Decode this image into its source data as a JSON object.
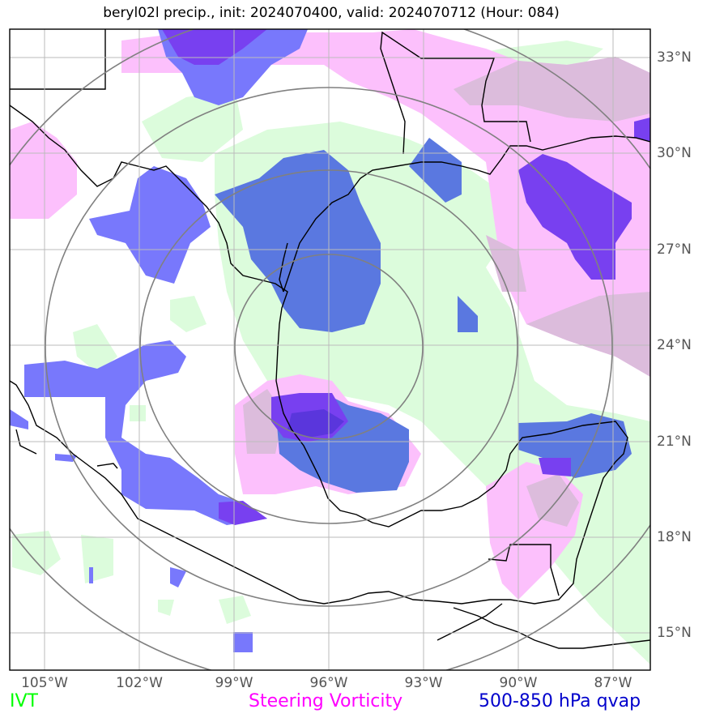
{
  "title": "beryl02l precip., init: 2024070400, valid: 2024070712 (Hour: 084)",
  "lat_labels": [
    "33°N",
    "30°N",
    "27°N",
    "24°N",
    "21°N",
    "18°N",
    "15°N"
  ],
  "lon_labels": [
    "105°W",
    "102°W",
    "99°W",
    "96°W",
    "93°W",
    "90°W",
    "87°W"
  ],
  "legend": {
    "ivt": {
      "label": "IVT",
      "color": "#00ff00"
    },
    "vorticity": {
      "label": "Steering Vorticity",
      "color": "#ff00ff"
    },
    "qvap": {
      "label": "500-850 hPa qvap",
      "color": "#0000cc"
    }
  },
  "colors": {
    "ivt_fill": "#dcfcdc",
    "vorticity_fill": "#fcc0fc",
    "vorticity_overlap": "#dcbcdc",
    "qvap_light": "#7878fc",
    "qvap_medium": "#5a78e0",
    "qvap_dark": "#7840f0",
    "qvap_darkest": "#5a36dc",
    "grid": "#bbbbbb",
    "range_rings": "#808080",
    "coastline": "#000000"
  }
}
